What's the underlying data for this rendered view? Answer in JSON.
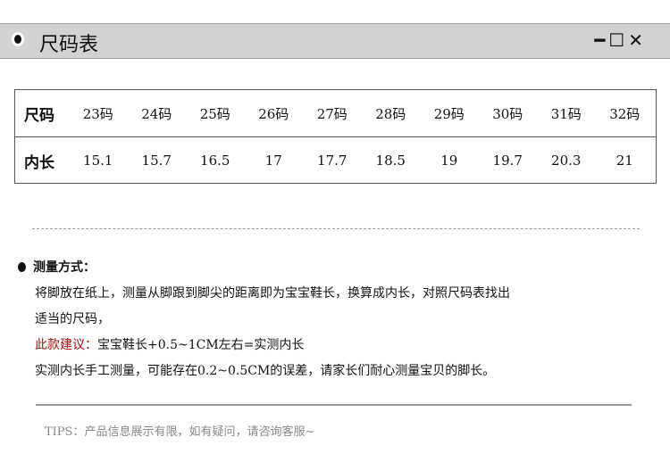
{
  "window": {
    "title": "尺码表",
    "minimize": "━",
    "maximize": "☐",
    "close": "✕"
  },
  "table": {
    "size_label": "尺码",
    "sizes": [
      "23码",
      "24码",
      "25码",
      "26码",
      "27码",
      "28码",
      "29码",
      "30码",
      "31码",
      "32码"
    ],
    "length_label": "内长",
    "lengths": [
      "15.1",
      "15.7",
      "16.5",
      "17",
      "17.7",
      "18.5",
      "19",
      "19.7",
      "20.3",
      "21"
    ]
  },
  "method": {
    "heading": "测量方式：",
    "line1": "将脚放在纸上，测量从脚跟到脚尖的距离即为宝宝鞋长，换算成内长，对照尺码表找出",
    "line2": "适当的尺码，",
    "advice_label": "此款建议：",
    "advice": "宝宝鞋长+0.5~1CM左右=实测内长",
    "line4": "实测内长手工测量，可能存在0.2~0.5CM的误差，请家长们耐心测量宝贝的脚长。"
  },
  "tips": "TIPS：产品信息展示有限，如有疑问，请咨询客服~",
  "colors": {
    "advice": "#a01010",
    "bar": "#d1d2d1"
  }
}
